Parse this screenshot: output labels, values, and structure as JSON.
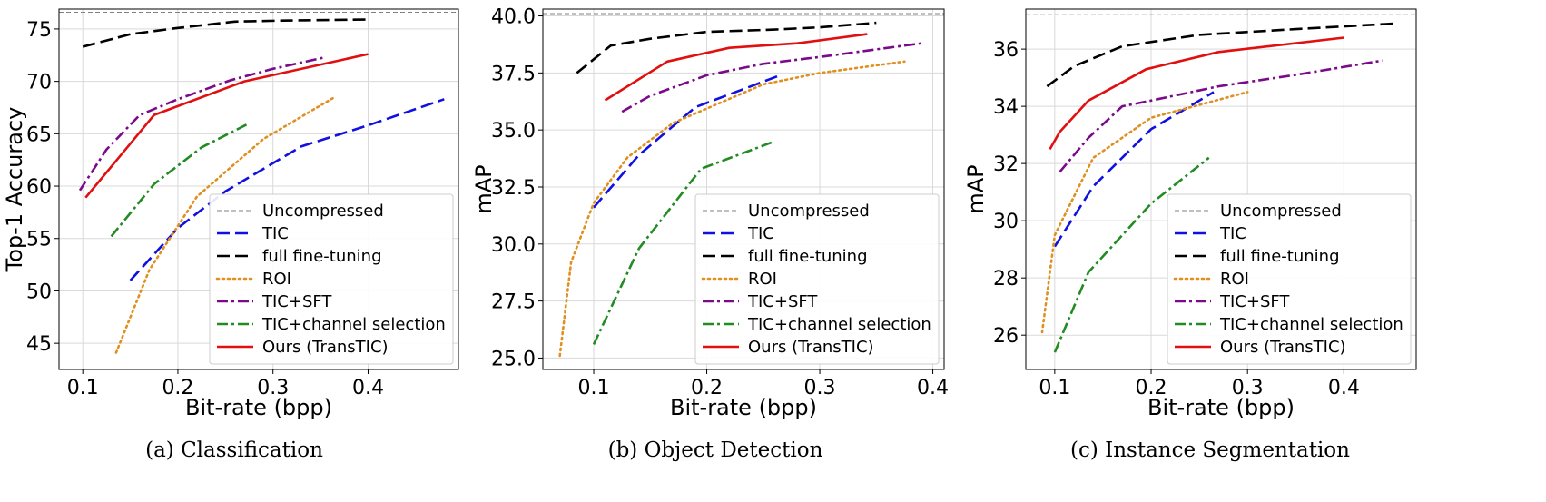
{
  "colors": {
    "Uncompressed": "#808080",
    "TIC": "#1010e0",
    "full fine-tuning": "#000000",
    "ROI": "#e09020",
    "TIC+SFT": "#7b0a8a",
    "TIC+channel selection": "#228b22",
    "Ours (TransTIC)": "#e01010"
  },
  "chart_data": [
    {
      "type": "line",
      "title": "",
      "caption": "(a)  Classification",
      "xlabel": "Bit-rate (bpp)",
      "ylabel": "Top-1 Accuracy",
      "xlim": [
        0.075,
        0.495
      ],
      "ylim": [
        42.5,
        76.9
      ],
      "xticks": [
        0.1,
        0.2,
        0.3,
        0.4
      ],
      "xtick_labels": [
        "0.1",
        "0.2",
        "0.3",
        "0.4"
      ],
      "yticks": [
        45,
        50,
        55,
        60,
        65,
        70,
        75
      ],
      "ytick_labels": [
        "45",
        "50",
        "55",
        "60",
        "65",
        "70",
        "75"
      ],
      "uncompressed": 76.6,
      "legend_location": "lower-right",
      "series": [
        {
          "name": "Uncompressed",
          "style": "thin-dashed",
          "x": [],
          "y": []
        },
        {
          "name": "TIC",
          "style": "dashed",
          "x": [
            0.15,
            0.2,
            0.25,
            0.33,
            0.4,
            0.48
          ],
          "y": [
            51,
            56,
            59.5,
            63.8,
            65.8,
            68.3
          ]
        },
        {
          "name": "full fine-tuning",
          "style": "dashed",
          "x": [
            0.1,
            0.15,
            0.2,
            0.26,
            0.31,
            0.4
          ],
          "y": [
            73.3,
            74.5,
            75.1,
            75.7,
            75.8,
            75.9
          ]
        },
        {
          "name": "ROI",
          "style": "dotted",
          "x": [
            0.135,
            0.17,
            0.22,
            0.29,
            0.365
          ],
          "y": [
            44.1,
            52,
            59,
            64.5,
            68.5
          ]
        },
        {
          "name": "TIC+SFT",
          "style": "dashdot",
          "x": [
            0.097,
            0.125,
            0.16,
            0.2,
            0.255,
            0.3,
            0.355
          ],
          "y": [
            59.6,
            63.5,
            66.8,
            68.3,
            70.1,
            71.2,
            72.3
          ]
        },
        {
          "name": "TIC+channel selection",
          "style": "dashdot",
          "x": [
            0.13,
            0.175,
            0.225,
            0.275
          ],
          "y": [
            55.2,
            60.2,
            63.7,
            66
          ]
        },
        {
          "name": "Ours (TransTIC)",
          "style": "solid",
          "x": [
            0.103,
            0.175,
            0.27,
            0.4
          ],
          "y": [
            58.9,
            66.8,
            70,
            72.6
          ]
        }
      ]
    },
    {
      "type": "line",
      "title": "",
      "caption": "(b)  Object Detection",
      "xlabel": "Bit-rate (bpp)",
      "ylabel": "mAP",
      "xlim": [
        0.055,
        0.41
      ],
      "ylim": [
        24.5,
        40.3
      ],
      "xticks": [
        0.1,
        0.2,
        0.3,
        0.4
      ],
      "xtick_labels": [
        "0.1",
        "0.2",
        "0.3",
        "0.4"
      ],
      "yticks": [
        25.0,
        27.5,
        30.0,
        32.5,
        35.0,
        37.5,
        40.0
      ],
      "ytick_labels": [
        "25.0",
        "27.5",
        "30.0",
        "32.5",
        "35.0",
        "37.5",
        "40.0"
      ],
      "uncompressed": 40.1,
      "legend_location": "lower-right",
      "series": [
        {
          "name": "Uncompressed",
          "style": "thin-dashed",
          "x": [],
          "y": []
        },
        {
          "name": "TIC",
          "style": "dashed",
          "x": [
            0.1,
            0.14,
            0.19,
            0.265
          ],
          "y": [
            31.6,
            33.9,
            36,
            37.4
          ]
        },
        {
          "name": "full fine-tuning",
          "style": "dashed",
          "x": [
            0.085,
            0.115,
            0.15,
            0.2,
            0.26,
            0.3,
            0.35
          ],
          "y": [
            37.5,
            38.7,
            39,
            39.3,
            39.4,
            39.5,
            39.7
          ]
        },
        {
          "name": "ROI",
          "style": "dotted",
          "x": [
            0.07,
            0.08,
            0.1,
            0.13,
            0.17,
            0.25,
            0.3,
            0.375
          ],
          "y": [
            25.1,
            29.2,
            31.8,
            33.8,
            35.3,
            37,
            37.5,
            38
          ]
        },
        {
          "name": "TIC+SFT",
          "style": "dashdot",
          "x": [
            0.125,
            0.15,
            0.2,
            0.25,
            0.3,
            0.39
          ],
          "y": [
            35.8,
            36.5,
            37.4,
            37.9,
            38.2,
            38.8
          ]
        },
        {
          "name": "TIC+channel selection",
          "style": "dashdot",
          "x": [
            0.1,
            0.14,
            0.195,
            0.26
          ],
          "y": [
            25.6,
            29.8,
            33.3,
            34.5
          ]
        },
        {
          "name": "Ours (TransTIC)",
          "style": "solid",
          "x": [
            0.11,
            0.165,
            0.22,
            0.28,
            0.342
          ],
          "y": [
            36.3,
            38,
            38.6,
            38.8,
            39.2
          ]
        }
      ]
    },
    {
      "type": "line",
      "title": "",
      "caption": "(c)  Instance Segmentation",
      "xlabel": "Bit-rate (bpp)",
      "ylabel": "mAP",
      "xlim": [
        0.07,
        0.475
      ],
      "ylim": [
        24.8,
        37.4
      ],
      "xticks": [
        0.1,
        0.2,
        0.3,
        0.4
      ],
      "xtick_labels": [
        "0.1",
        "0.2",
        "0.3",
        "0.4"
      ],
      "yticks": [
        26,
        28,
        30,
        32,
        34,
        36
      ],
      "ytick_labels": [
        "26",
        "28",
        "30",
        "32",
        "34",
        "36"
      ],
      "uncompressed": 37.2,
      "legend_location": "lower-right",
      "series": [
        {
          "name": "Uncompressed",
          "style": "thin-dashed",
          "x": [],
          "y": []
        },
        {
          "name": "TIC",
          "style": "dashed",
          "x": [
            0.1,
            0.14,
            0.2,
            0.265
          ],
          "y": [
            29.1,
            31.2,
            33.2,
            34.5
          ]
        },
        {
          "name": "full fine-tuning",
          "style": "dashed",
          "x": [
            0.092,
            0.12,
            0.17,
            0.25,
            0.35,
            0.455
          ],
          "y": [
            34.7,
            35.4,
            36.1,
            36.5,
            36.7,
            36.9
          ]
        },
        {
          "name": "ROI",
          "style": "dotted",
          "x": [
            0.087,
            0.1,
            0.14,
            0.2,
            0.3
          ],
          "y": [
            26.1,
            29.5,
            32.2,
            33.6,
            34.5
          ]
        },
        {
          "name": "TIC+SFT",
          "style": "dashdot",
          "x": [
            0.105,
            0.135,
            0.17,
            0.2,
            0.27,
            0.35,
            0.44
          ],
          "y": [
            31.7,
            32.9,
            34,
            34.2,
            34.7,
            35.1,
            35.6
          ]
        },
        {
          "name": "TIC+channel selection",
          "style": "dashdot",
          "x": [
            0.1,
            0.135,
            0.2,
            0.26
          ],
          "y": [
            25.4,
            28.2,
            30.6,
            32.2
          ]
        },
        {
          "name": "Ours (TransTIC)",
          "style": "solid",
          "x": [
            0.095,
            0.105,
            0.135,
            0.195,
            0.27,
            0.4
          ],
          "y": [
            32.5,
            33.1,
            34.2,
            35.3,
            35.9,
            36.4
          ]
        }
      ]
    }
  ]
}
